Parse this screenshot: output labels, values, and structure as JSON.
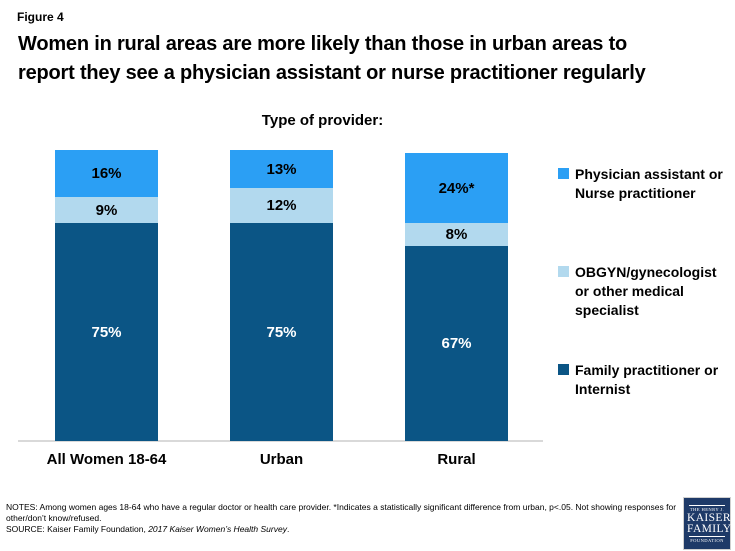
{
  "figure_label": "Figure 4",
  "title_lines": [
    "Women in rural areas are more likely than those in urban areas to",
    "report they see a physician assistant or nurse practitioner regularly"
  ],
  "chart_data": {
    "type": "bar",
    "stacked": true,
    "title": "Type of provider:",
    "categories": [
      "All Women 18-64",
      "Urban",
      "Rural"
    ],
    "series": [
      {
        "name": "Physician assistant or Nurse practitioner",
        "name_lines": [
          "Physician assistant or",
          "Nurse practitioner"
        ],
        "color": "#2b9ff4",
        "values": [
          16,
          13,
          24
        ],
        "data_labels": [
          "16%",
          "13%",
          "24%*"
        ],
        "label_color": "#000000"
      },
      {
        "name": "OBGYN/gynecologist or other medical specialist",
        "name_lines": [
          "OBGYN/gynecologist",
          "or other medical",
          "specialist"
        ],
        "color": "#b2d9ee",
        "values": [
          9,
          12,
          8
        ],
        "data_labels": [
          "9%",
          "12%",
          "8%"
        ],
        "label_color": "#000000"
      },
      {
        "name": "Family practitioner or Internist",
        "name_lines": [
          "Family practitioner or",
          "Internist"
        ],
        "color": "#0b5585",
        "values": [
          75,
          75,
          67
        ],
        "data_labels": [
          "75%",
          "75%",
          "67%"
        ],
        "label_color": "#ffffff"
      }
    ],
    "ylim": [
      0,
      100
    ],
    "legend_position": "right",
    "axis_line_color": "#d9d9d9"
  },
  "notes": {
    "notes_text": "NOTES: Among women ages 18-64 who have a regular doctor or health care provider. *Indicates a statistically significant difference from urban, p<.05. Not showing responses for other/don’t know/refused.",
    "source_prefix": "SOURCE: Kaiser Family Foundation, ",
    "source_italic": "2017 Kaiser Women’s Health Survey",
    "source_suffix": "."
  },
  "logo": {
    "line1": "THE HENRY J.",
    "line2": "KAISER",
    "line3": "FAMILY",
    "line4": "FOUNDATION",
    "bg_color": "#1e3a68"
  }
}
